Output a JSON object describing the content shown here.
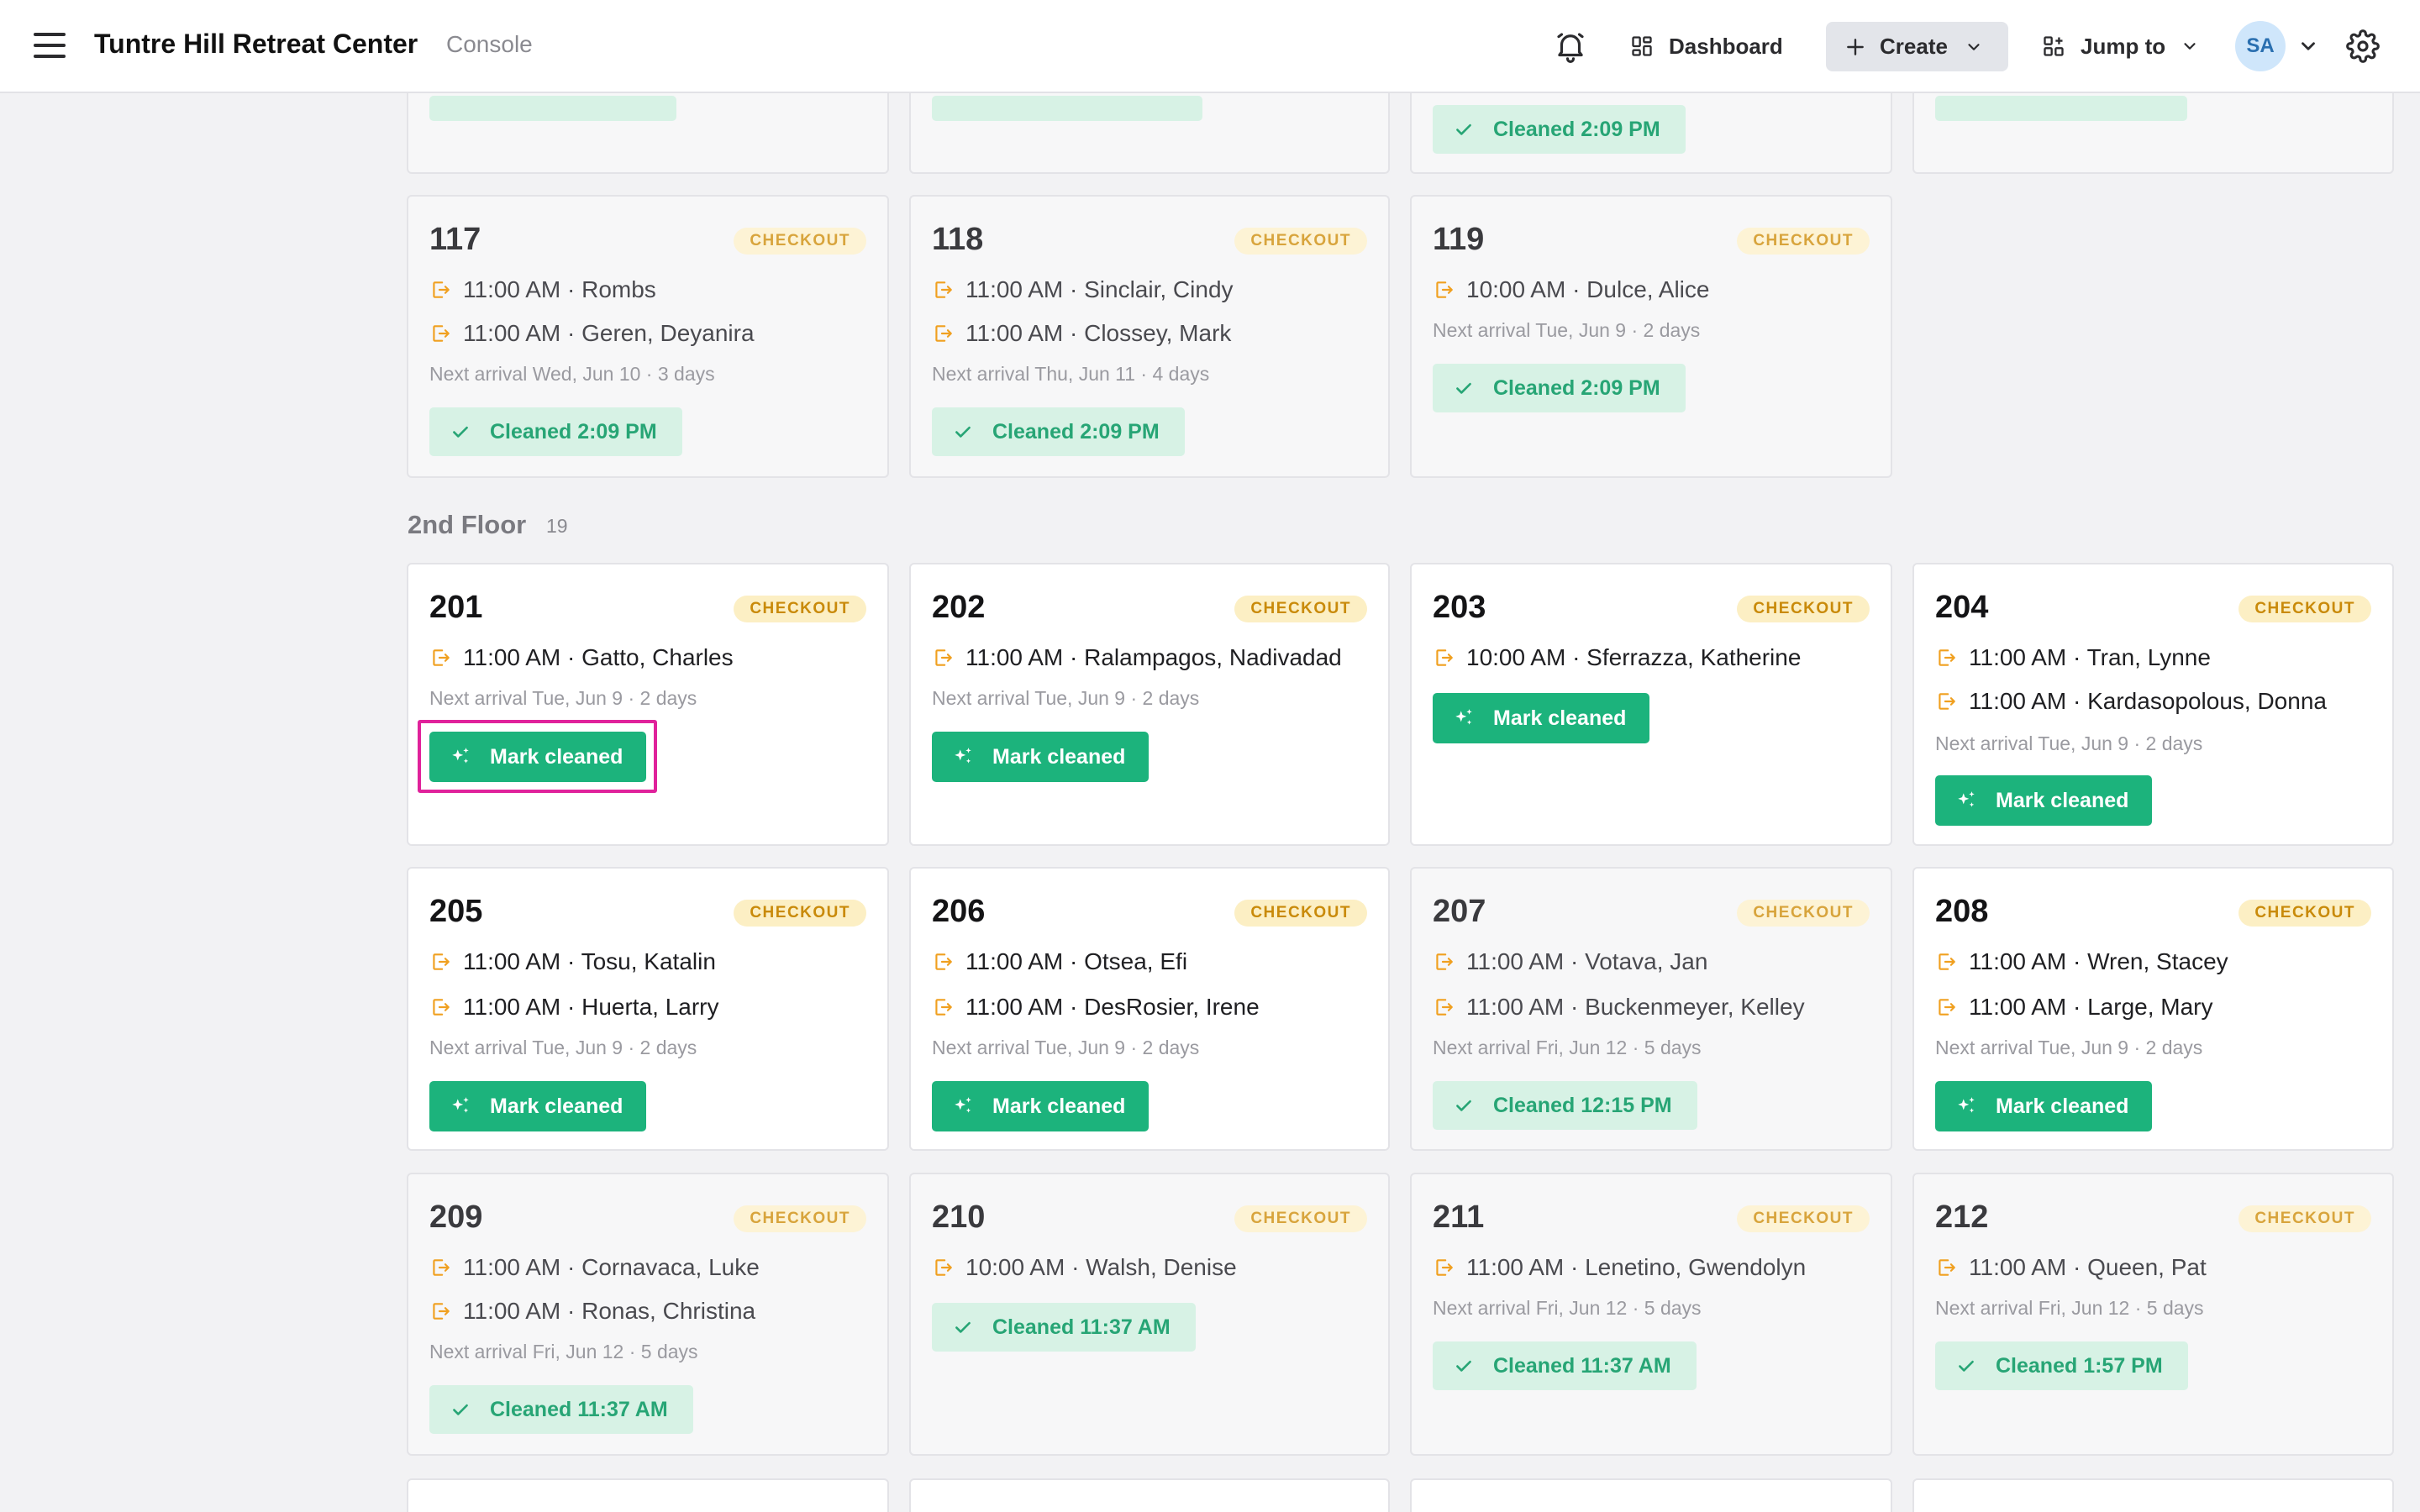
{
  "header": {
    "title": "Tuntre Hill Retreat Center",
    "subtitle": "Console",
    "nav_dashboard": "Dashboard",
    "create_label": "Create",
    "nav_jump": "Jump to",
    "avatar_initials": "SA"
  },
  "floor2": {
    "title": "2nd Floor",
    "count": "19"
  },
  "top_partial": [
    {
      "cleaned": ""
    },
    {
      "cleaned": ""
    },
    {
      "cleaned": "Cleaned 2:09 PM"
    },
    {
      "cleaned": ""
    }
  ],
  "rooms": {
    "r117": {
      "num": "117",
      "badge": "CHECKOUT",
      "l1": "11:00 AM · Rombs",
      "l2": "11:00 AM · Geren, Deyanira",
      "next": "Next arrival Wed, Jun 10 · 3 days",
      "cleaned": "Cleaned 2:09 PM"
    },
    "r118": {
      "num": "118",
      "badge": "CHECKOUT",
      "l1": "11:00 AM · Sinclair, Cindy",
      "l2": "11:00 AM · Clossey, Mark",
      "next": "Next arrival Thu, Jun 11 · 4 days",
      "cleaned": "Cleaned 2:09 PM"
    },
    "r119": {
      "num": "119",
      "badge": "CHECKOUT",
      "l1": "10:00 AM · Dulce, Alice",
      "next": "Next arrival Tue, Jun 9 · 2 days",
      "cleaned": "Cleaned 2:09 PM"
    },
    "r201": {
      "num": "201",
      "badge": "CHECKOUT",
      "l1": "11:00 AM · Gatto, Charles",
      "next": "Next arrival Tue, Jun 9 · 2 days",
      "action": "Mark cleaned"
    },
    "r202": {
      "num": "202",
      "badge": "CHECKOUT",
      "l1": "11:00 AM · Ralampagos, Nadivadad",
      "next": "Next arrival Tue, Jun 9 · 2 days",
      "action": "Mark cleaned"
    },
    "r203": {
      "num": "203",
      "badge": "CHECKOUT",
      "l1": "10:00 AM · Sferrazza, Katherine",
      "action": "Mark cleaned"
    },
    "r204": {
      "num": "204",
      "badge": "CHECKOUT",
      "l1": "11:00 AM · Tran, Lynne",
      "l2": "11:00 AM · Kardasopolous, Donna",
      "next": "Next arrival Tue, Jun 9 · 2 days",
      "action": "Mark cleaned"
    },
    "r205": {
      "num": "205",
      "badge": "CHECKOUT",
      "l1": "11:00 AM · Tosu, Katalin",
      "l2": "11:00 AM · Huerta, Larry",
      "next": "Next arrival Tue, Jun 9 · 2 days",
      "action": "Mark cleaned"
    },
    "r206": {
      "num": "206",
      "badge": "CHECKOUT",
      "l1": "11:00 AM · Otsea, Efi",
      "l2": "11:00 AM · DesRosier, Irene",
      "next": "Next arrival Tue, Jun 9 · 2 days",
      "action": "Mark cleaned"
    },
    "r207": {
      "num": "207",
      "badge": "CHECKOUT",
      "l1": "11:00 AM · Votava, Jan",
      "l2": "11:00 AM · Buckenmeyer, Kelley",
      "next": "Next arrival Fri, Jun 12 · 5 days",
      "cleaned": "Cleaned 12:15 PM"
    },
    "r208": {
      "num": "208",
      "badge": "CHECKOUT",
      "l1": "11:00 AM · Wren, Stacey",
      "l2": "11:00 AM · Large, Mary",
      "next": "Next arrival Tue, Jun 9 · 2 days",
      "action": "Mark cleaned"
    },
    "r209": {
      "num": "209",
      "badge": "CHECKOUT",
      "l1": "11:00 AM · Cornavaca, Luke",
      "l2": "11:00 AM · Ronas, Christina",
      "next": "Next arrival Fri, Jun 12 · 5 days",
      "cleaned": "Cleaned 11:37 AM"
    },
    "r210": {
      "num": "210",
      "badge": "CHECKOUT",
      "l1": "10:00 AM · Walsh, Denise",
      "cleaned": "Cleaned 11:37 AM"
    },
    "r211": {
      "num": "211",
      "badge": "CHECKOUT",
      "l1": "11:00 AM · Lenetino, Gwendolyn",
      "next": "Next arrival Fri, Jun 12 · 5 days",
      "cleaned": "Cleaned 11:37 AM"
    },
    "r212": {
      "num": "212",
      "badge": "CHECKOUT",
      "l1": "11:00 AM · Queen, Pat",
      "next": "Next arrival Fri, Jun 12 · 5 days",
      "cleaned": "Cleaned 1:57 PM"
    }
  },
  "colors": {
    "accent_green": "#1cb37c",
    "cleaned_bg": "#d7f2e5",
    "badge_bg": "#fcefc4",
    "badge_text": "#c98a0a",
    "checkout_icon": "#f0a020",
    "highlight": "#e0229b"
  },
  "icons": {
    "checkout": "checkout-arrow-icon",
    "cleaned": "check-icon",
    "mark": "sparkle-icon",
    "bell": "bell-icon",
    "dashboard": "dashboard-grid-icon",
    "create": "plus-icon",
    "jump": "jump-grid-icon",
    "settings": "gear-icon"
  }
}
